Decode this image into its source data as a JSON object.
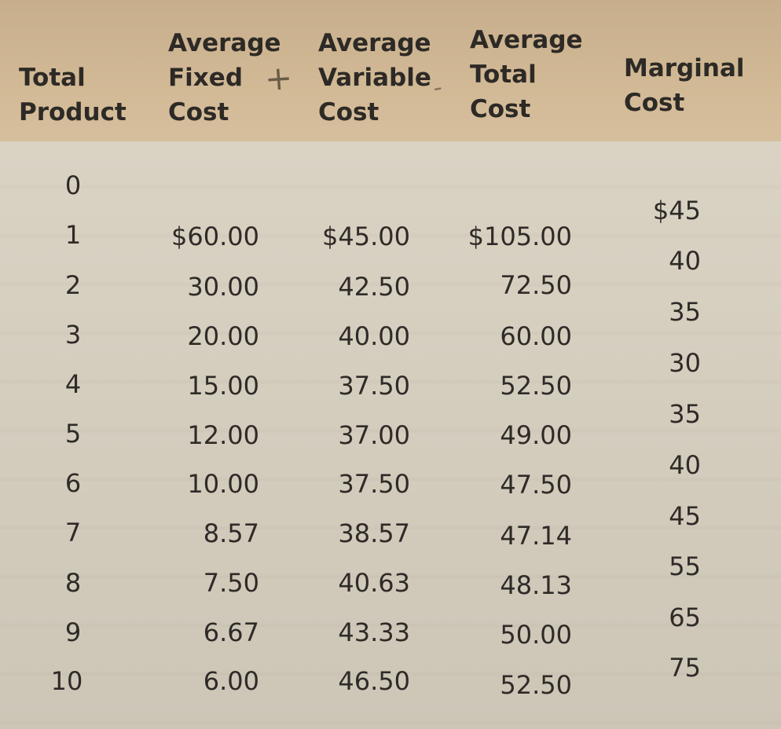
{
  "table": {
    "headers": {
      "total_product": [
        "Total",
        "Product"
      ],
      "average_fixed_cost": [
        "Average",
        "Fixed",
        "Cost"
      ],
      "average_variable_cost": [
        "Average",
        "Variable",
        "Cost"
      ],
      "average_total_cost": [
        "Average",
        "Total",
        "Cost"
      ],
      "marginal_cost": [
        "Marginal",
        "Cost"
      ]
    },
    "rows": [
      {
        "total_product": "0",
        "average_fixed_cost": "",
        "average_variable_cost": "",
        "average_total_cost": ""
      },
      {
        "total_product": "1",
        "average_fixed_cost": "$60.00",
        "average_variable_cost": "$45.00",
        "average_total_cost": "$105.00"
      },
      {
        "total_product": "2",
        "average_fixed_cost": "30.00",
        "average_variable_cost": "42.50",
        "average_total_cost": "72.50"
      },
      {
        "total_product": "3",
        "average_fixed_cost": "20.00",
        "average_variable_cost": "40.00",
        "average_total_cost": "60.00"
      },
      {
        "total_product": "4",
        "average_fixed_cost": "15.00",
        "average_variable_cost": "37.50",
        "average_total_cost": "52.50"
      },
      {
        "total_product": "5",
        "average_fixed_cost": "12.00",
        "average_variable_cost": "37.00",
        "average_total_cost": "49.00"
      },
      {
        "total_product": "6",
        "average_fixed_cost": "10.00",
        "average_variable_cost": "37.50",
        "average_total_cost": "47.50"
      },
      {
        "total_product": "7",
        "average_fixed_cost": "8.57",
        "average_variable_cost": "38.57",
        "average_total_cost": "47.14"
      },
      {
        "total_product": "8",
        "average_fixed_cost": "7.50",
        "average_variable_cost": "40.63",
        "average_total_cost": "48.13"
      },
      {
        "total_product": "9",
        "average_fixed_cost": "6.67",
        "average_variable_cost": "43.33",
        "average_total_cost": "50.00"
      },
      {
        "total_product": "10",
        "average_fixed_cost": "6.00",
        "average_variable_cost": "46.50",
        "average_total_cost": "52.50"
      }
    ],
    "marginal_cost": [
      "$45",
      "40",
      "35",
      "30",
      "35",
      "40",
      "45",
      "55",
      "65",
      "75"
    ]
  },
  "handwritten_marks": {
    "plus_sign": "+",
    "dash_mark": "-"
  }
}
